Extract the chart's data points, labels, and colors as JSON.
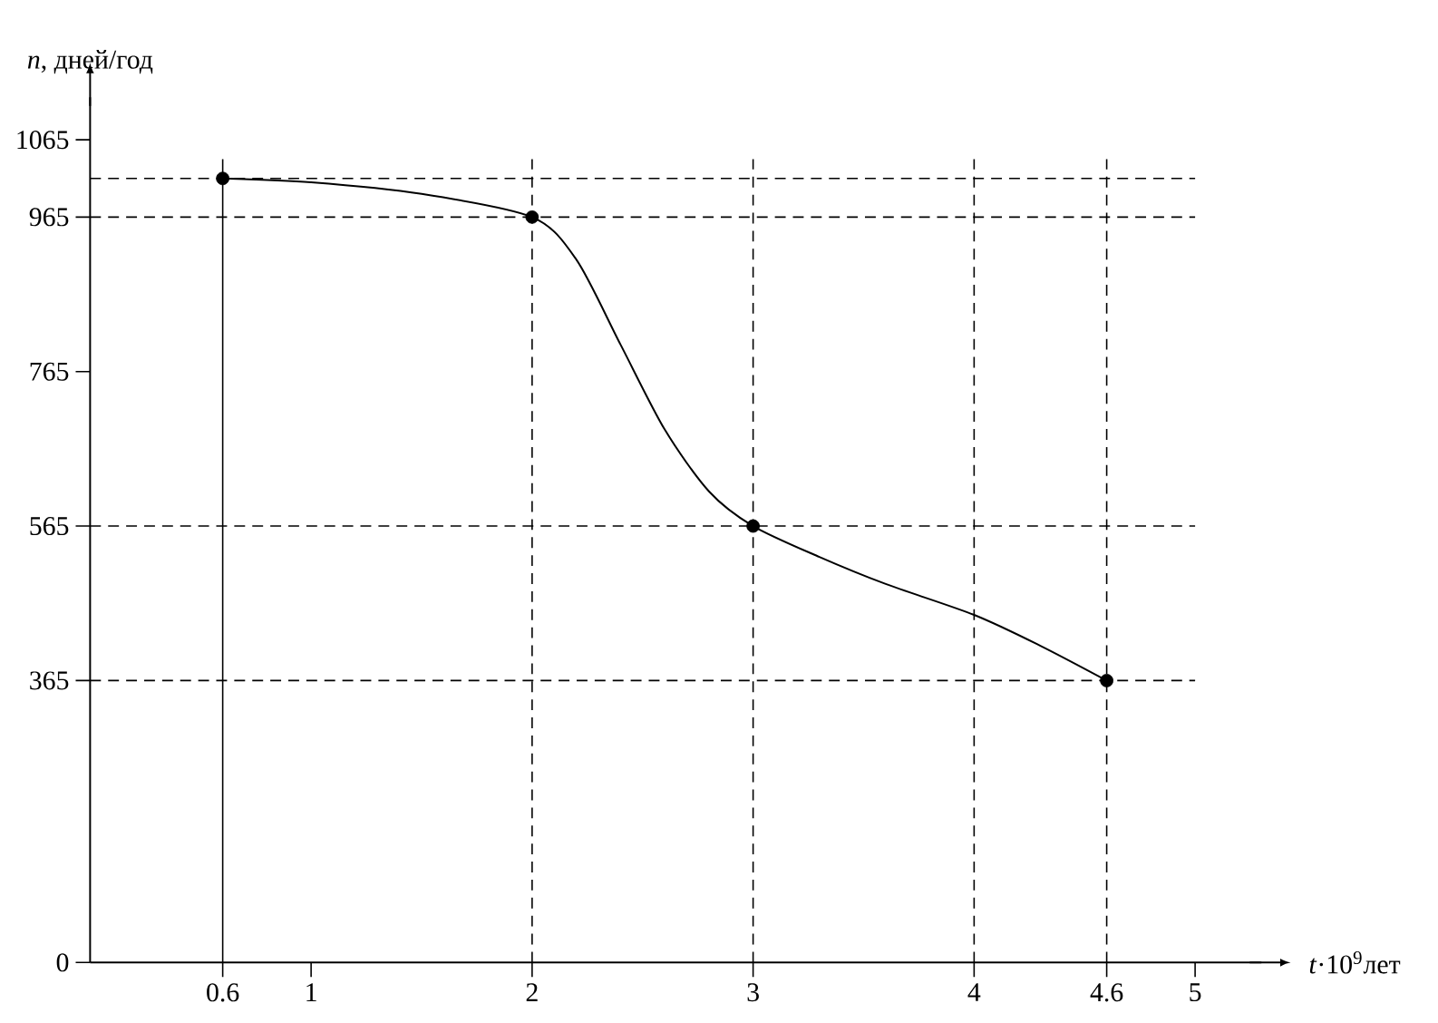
{
  "chart_data": {
    "type": "line",
    "xlabel": "*t*·10$^{9}$лет",
    "ylabel": "*n*, дней/год",
    "xlim": [
      0,
      5.3
    ],
    "ylim": [
      0,
      1120
    ],
    "xticks": [
      0.6,
      1,
      2,
      3,
      4,
      4.6,
      5
    ],
    "yticks": [
      0,
      365,
      565,
      765,
      965,
      1065
    ],
    "grid": false,
    "series": [
      {
        "color": "#000000",
        "marker": "none",
        "x": [
          0.6,
          1,
          1.5,
          2,
          2.2,
          2.4,
          2.6,
          2.8,
          3,
          3.3,
          3.6,
          4,
          4.3,
          4.6
        ],
        "values": [
          1015,
          1010,
          995,
          965,
          910,
          800,
          690,
          610,
          565,
          525,
          490,
          450,
          410,
          365
        ]
      },
      {
        "type": "scatter",
        "color": "#000000",
        "marker": "circle",
        "x": [
          0.6,
          2,
          3,
          4.6
        ],
        "values": [
          1015,
          965,
          565,
          365
        ]
      }
    ],
    "ref_lines": [
      {
        "axis": "y",
        "value": 1015,
        "line_style": "dashed"
      },
      {
        "axis": "y",
        "value": 965,
        "line_style": "dashed"
      },
      {
        "axis": "y",
        "value": 565,
        "line_style": "dashed"
      },
      {
        "axis": "y",
        "value": 365,
        "line_style": "dashed"
      },
      {
        "axis": "x",
        "value": 0.6,
        "line_style": "solid"
      },
      {
        "axis": "x",
        "value": 2,
        "line_style": "dashed"
      },
      {
        "axis": "x",
        "value": 3,
        "line_style": "dashed"
      },
      {
        "axis": "x",
        "value": 4,
        "line_style": "dashed"
      },
      {
        "axis": "x",
        "value": 4.6,
        "line_style": "dashed"
      }
    ]
  }
}
